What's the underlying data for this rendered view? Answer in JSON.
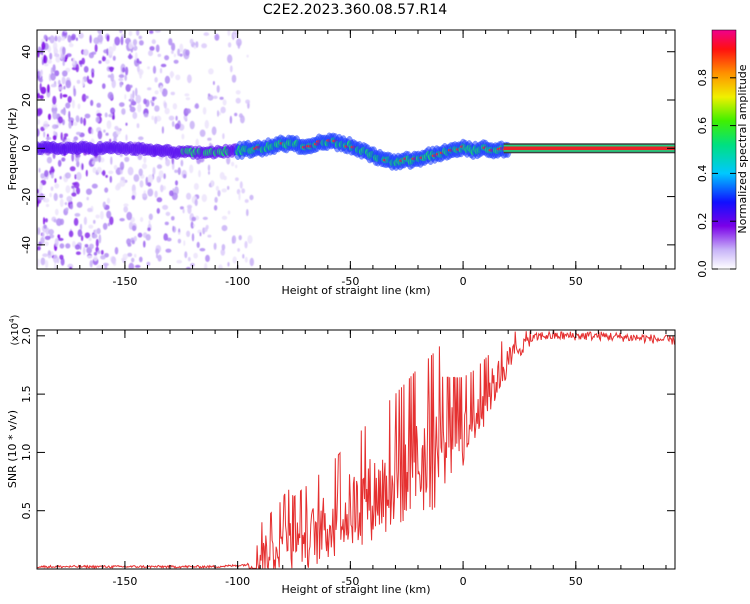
{
  "title": "C2E2.2023.360.08.57.R14",
  "colors": {
    "snr_line": "#e53030",
    "carrier": "#e8242a",
    "axis": "#000000"
  },
  "chart_data": [
    {
      "type": "heatmap",
      "xlabel": "Height of straight line (km)",
      "ylabel": "Frequency (Hz)",
      "xlim": [
        -189,
        94
      ],
      "ylim": [
        -50,
        49
      ],
      "xticks": [
        -150,
        -100,
        -50,
        0,
        50
      ],
      "yticks": [
        -40,
        -20,
        0,
        20,
        40
      ],
      "grid": false,
      "colorbar": {
        "label": "Normalized spectral amplitude",
        "range": [
          0,
          1
        ],
        "ticks": [
          "0.0",
          "0.2",
          "0.4",
          "0.6",
          "0.8"
        ],
        "colormap": "rainbow (white-violet-blue-cyan-green-yellow-orange-red-magenta)"
      },
      "signal_track": {
        "x": [
          -189,
          -150,
          -120,
          -100,
          -90,
          -80,
          -70,
          -60,
          -50,
          -40,
          -35,
          -30,
          -25,
          -20,
          -15,
          -10,
          -5,
          0,
          5,
          10,
          15,
          20,
          94
        ],
        "y": [
          0,
          0,
          -2,
          -1,
          0,
          2,
          1,
          3,
          1,
          -3,
          -5,
          -6,
          -5,
          -5,
          -3,
          -2,
          -1,
          0,
          -1,
          0,
          -1,
          0,
          0
        ]
      },
      "noise_region_x": [
        -189,
        -100
      ]
    },
    {
      "type": "line",
      "xlabel": "Height of straight line (km)",
      "ylabel": "SNR (10 * v/v)",
      "y_multiplier": "(x10^4)",
      "xlim": [
        -189,
        94
      ],
      "ylim": [
        0,
        2.05
      ],
      "xticks": [
        -150,
        -100,
        -50,
        0,
        50
      ],
      "yticks": [
        0.5,
        1.0,
        1.5,
        2.0
      ],
      "grid": false,
      "series": [
        {
          "x": [
            -189,
            -170,
            -150,
            -130,
            -110,
            -100,
            -95,
            -90,
            -85,
            -80,
            -78,
            -75,
            -70,
            -65,
            -60,
            -55,
            -50,
            -45,
            -40,
            -35,
            -30,
            -25,
            -20,
            -15,
            -10,
            -5,
            0,
            5,
            10,
            15,
            20,
            25,
            30,
            35,
            40,
            50,
            60,
            70,
            80,
            94
          ],
          "values": [
            0.02,
            0.02,
            0.02,
            0.02,
            0.02,
            0.03,
            0.04,
            0.08,
            0.14,
            0.22,
            0.3,
            0.2,
            0.25,
            0.3,
            0.35,
            0.42,
            0.5,
            0.55,
            0.62,
            0.68,
            0.75,
            0.82,
            0.9,
            0.95,
            1.02,
            1.08,
            1.15,
            1.28,
            1.45,
            1.62,
            1.78,
            1.9,
            1.97,
            2.0,
            2.0,
            2.0,
            2.0,
            1.99,
            1.98,
            1.96
          ]
        }
      ]
    }
  ]
}
